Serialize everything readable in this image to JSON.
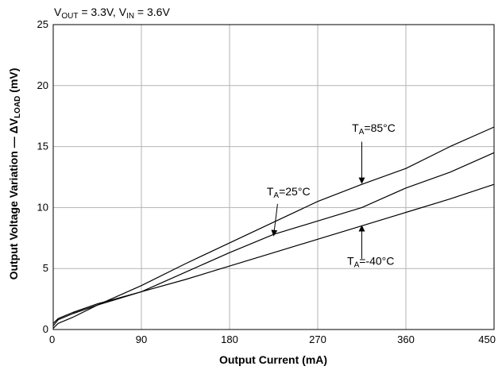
{
  "chart_data": {
    "type": "line",
    "condition": {
      "vout_label": "V",
      "vout_sub": "OUT",
      "vout_value": " = 3.3V, ",
      "vin_label": "V",
      "vin_sub": "IN",
      "vin_value": " = 3.6V"
    },
    "xlabel": "Output Current  (mA)",
    "ylabel": {
      "main": "Output Voltage Variation — ΔV",
      "sub": "LOAD",
      "unit": " (mV)"
    },
    "xlim": [
      0,
      450
    ],
    "ylim": [
      0,
      25
    ],
    "xticks": [
      0,
      90,
      180,
      270,
      360,
      450
    ],
    "yticks": [
      0,
      5,
      10,
      15,
      20,
      25
    ],
    "grid": true,
    "series": [
      {
        "name": {
          "t": "T",
          "sub": "A",
          "rest": "=85°C"
        },
        "x": [
          0,
          5,
          20,
          45,
          90,
          135,
          180,
          225,
          270,
          315,
          360,
          405,
          450
        ],
        "y": [
          0.3,
          0.8,
          1.3,
          2.0,
          3.6,
          5.4,
          7.1,
          8.8,
          10.5,
          11.9,
          13.2,
          15.0,
          16.6
        ]
      },
      {
        "name": {
          "t": "T",
          "sub": "A",
          "rest": "=25°C"
        },
        "x": [
          0,
          5,
          20,
          45,
          90,
          135,
          180,
          225,
          270,
          315,
          360,
          405,
          450
        ],
        "y": [
          0.1,
          0.5,
          1.0,
          2.0,
          3.1,
          4.7,
          6.3,
          7.8,
          8.9,
          10.0,
          11.6,
          12.9,
          14.5
        ]
      },
      {
        "name": {
          "t": "T",
          "sub": "A",
          "rest": "=-40°C"
        },
        "x": [
          0,
          5,
          20,
          45,
          90,
          135,
          180,
          225,
          270,
          315,
          360,
          405,
          450
        ],
        "y": [
          0.5,
          0.9,
          1.4,
          2.1,
          3.1,
          4.1,
          5.2,
          6.3,
          7.4,
          8.5,
          9.6,
          10.7,
          11.9
        ]
      }
    ],
    "annotations": [
      {
        "series": 0,
        "arrow_from": [
          315,
          15.4
        ],
        "arrow_to": [
          315,
          12.0
        ],
        "text_at": [
          305,
          16.2
        ]
      },
      {
        "series": 1,
        "arrow_from": [
          229,
          10.3
        ],
        "arrow_to": [
          225,
          7.7
        ],
        "text_at": [
          218,
          11.0
        ]
      },
      {
        "series": 2,
        "arrow_from": [
          315,
          5.8
        ],
        "arrow_to": [
          315,
          8.5
        ],
        "text_at": [
          300,
          5.3
        ]
      }
    ]
  }
}
